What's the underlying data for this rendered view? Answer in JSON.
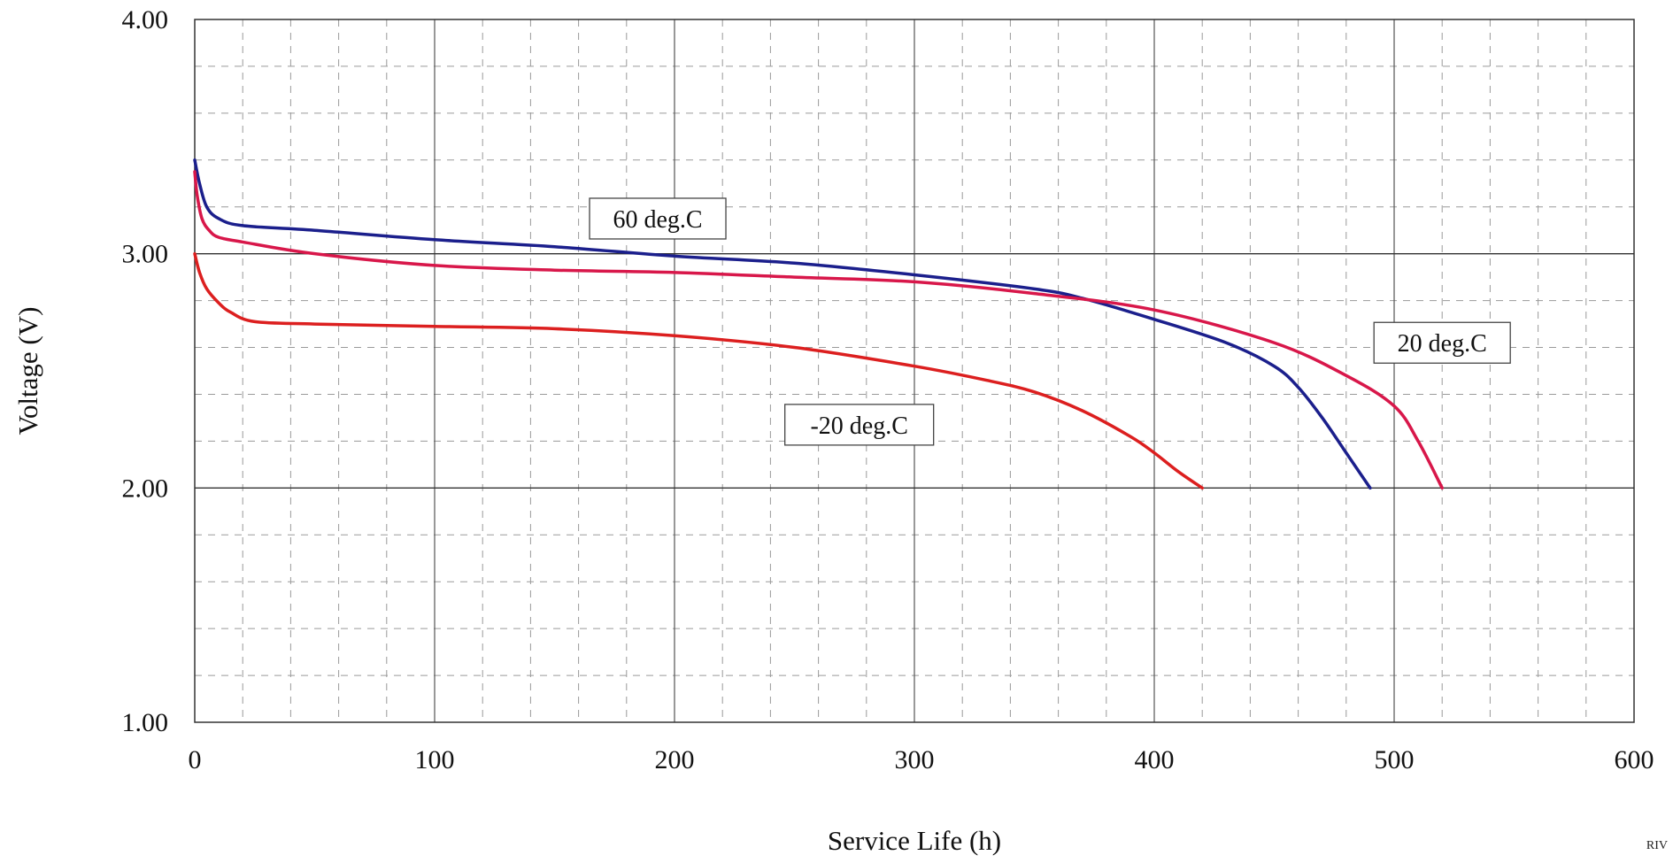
{
  "chart_data": {
    "type": "line",
    "title": "",
    "xlabel": "Service Life (h)",
    "ylabel": "Voltage (V)",
    "xlim": [
      0,
      600
    ],
    "ylim": [
      1.0,
      4.0
    ],
    "x_ticks": [
      "0",
      "100",
      "200",
      "300",
      "400",
      "500",
      "600"
    ],
    "y_ticks": [
      "1.00",
      "2.00",
      "3.00",
      "4.00"
    ],
    "grid": true,
    "legend": "none",
    "annotations": [
      {
        "text": "60 deg.C",
        "x": 193,
        "y": 3.15
      },
      {
        "text": "20 deg.C",
        "x": 520,
        "y": 2.62
      },
      {
        "text": "-20 deg.C",
        "x": 277,
        "y": 2.27
      }
    ],
    "series": [
      {
        "color": "#1b1f8c",
        "x": [
          0,
          2,
          5,
          10,
          20,
          50,
          100,
          150,
          200,
          250,
          300,
          350,
          370,
          400,
          430,
          450,
          460,
          470,
          480,
          490
        ],
        "y": [
          3.4,
          3.3,
          3.2,
          3.15,
          3.12,
          3.1,
          3.06,
          3.03,
          2.99,
          2.96,
          2.91,
          2.85,
          2.81,
          2.72,
          2.62,
          2.52,
          2.43,
          2.3,
          2.15,
          2.0
        ]
      },
      {
        "color": "#d8174a",
        "x": [
          0,
          1,
          3,
          6,
          10,
          20,
          50,
          100,
          150,
          200,
          250,
          300,
          350,
          400,
          450,
          480,
          500,
          510,
          520
        ],
        "y": [
          3.35,
          3.25,
          3.15,
          3.1,
          3.07,
          3.05,
          3.0,
          2.95,
          2.93,
          2.92,
          2.9,
          2.88,
          2.83,
          2.76,
          2.62,
          2.48,
          2.35,
          2.2,
          2.0
        ]
      },
      {
        "color": "#dc1f1f",
        "x": [
          0,
          2,
          5,
          10,
          15,
          25,
          50,
          100,
          150,
          200,
          250,
          300,
          330,
          350,
          370,
          390,
          400,
          410,
          420
        ],
        "y": [
          3.0,
          2.92,
          2.85,
          2.79,
          2.75,
          2.71,
          2.7,
          2.69,
          2.68,
          2.65,
          2.6,
          2.52,
          2.46,
          2.41,
          2.33,
          2.22,
          2.15,
          2.07,
          2.0
        ]
      }
    ]
  },
  "corner_text": "RIV"
}
